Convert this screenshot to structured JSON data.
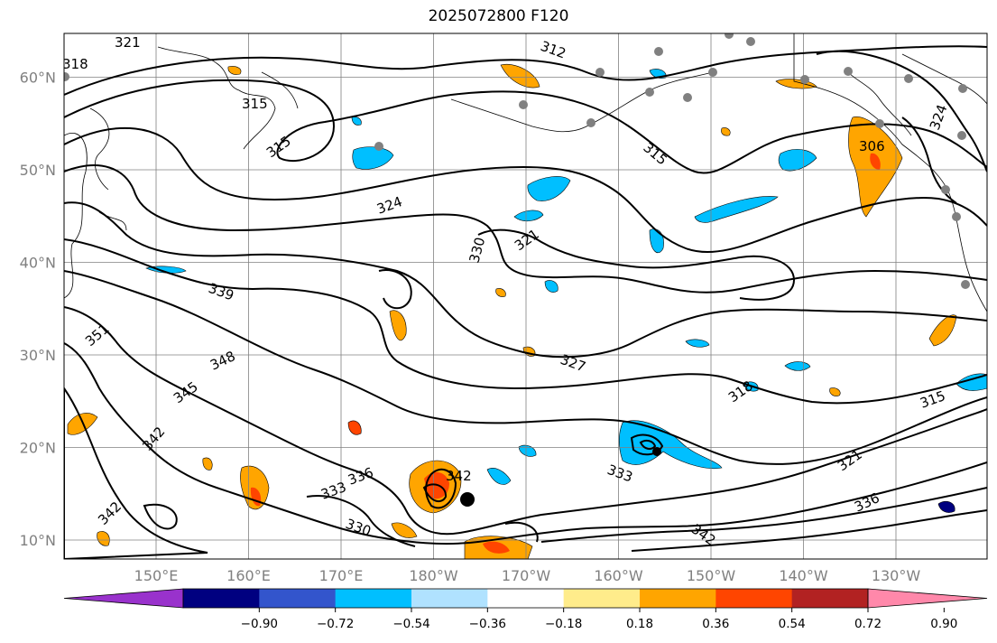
{
  "title": "2025072800 F120",
  "map": {
    "lat_labels": [
      {
        "text": "60°N",
        "lat": 60
      },
      {
        "text": "50°N",
        "lat": 50
      },
      {
        "text": "40°N",
        "lat": 40
      },
      {
        "text": "30°N",
        "lat": 30
      },
      {
        "text": "20°N",
        "lat": 20
      },
      {
        "text": "10°N",
        "lat": 10
      }
    ],
    "lon_labels": [
      {
        "text": "150°E",
        "lon": 150
      },
      {
        "text": "160°E",
        "lon": 160
      },
      {
        "text": "170°E",
        "lon": 170
      },
      {
        "text": "180°W",
        "lon": 180
      },
      {
        "text": "170°W",
        "lon": 190
      },
      {
        "text": "160°W",
        "lon": 200
      },
      {
        "text": "150°W",
        "lon": 210
      },
      {
        "text": "140°W",
        "lon": 220
      },
      {
        "text": "130°W",
        "lon": 230
      }
    ],
    "contour_labels": [
      "321",
      "318",
      "312",
      "315",
      "315",
      "315",
      "324",
      "330",
      "321",
      "339",
      "351",
      "348",
      "345",
      "342",
      "342",
      "336",
      "333",
      "330",
      "342",
      "327",
      "318",
      "315",
      "321",
      "336",
      "342",
      "333",
      "306",
      "324"
    ],
    "colors": {
      "contour": "#000000",
      "grid": "#808080",
      "dots": "#808080"
    }
  },
  "colorbar": {
    "ticks": [
      "−0.90",
      "−0.72",
      "−0.54",
      "−0.36",
      "−0.18",
      "0.18",
      "0.36",
      "0.54",
      "0.72",
      "0.90"
    ],
    "colors": [
      "#9932cc",
      "#000080",
      "#3355cc",
      "#00bfff",
      "#b0e2ff",
      "#ffffff",
      "#ffec8b",
      "#ffa500",
      "#ff4500",
      "#b22222",
      "#ff88aa"
    ]
  }
}
